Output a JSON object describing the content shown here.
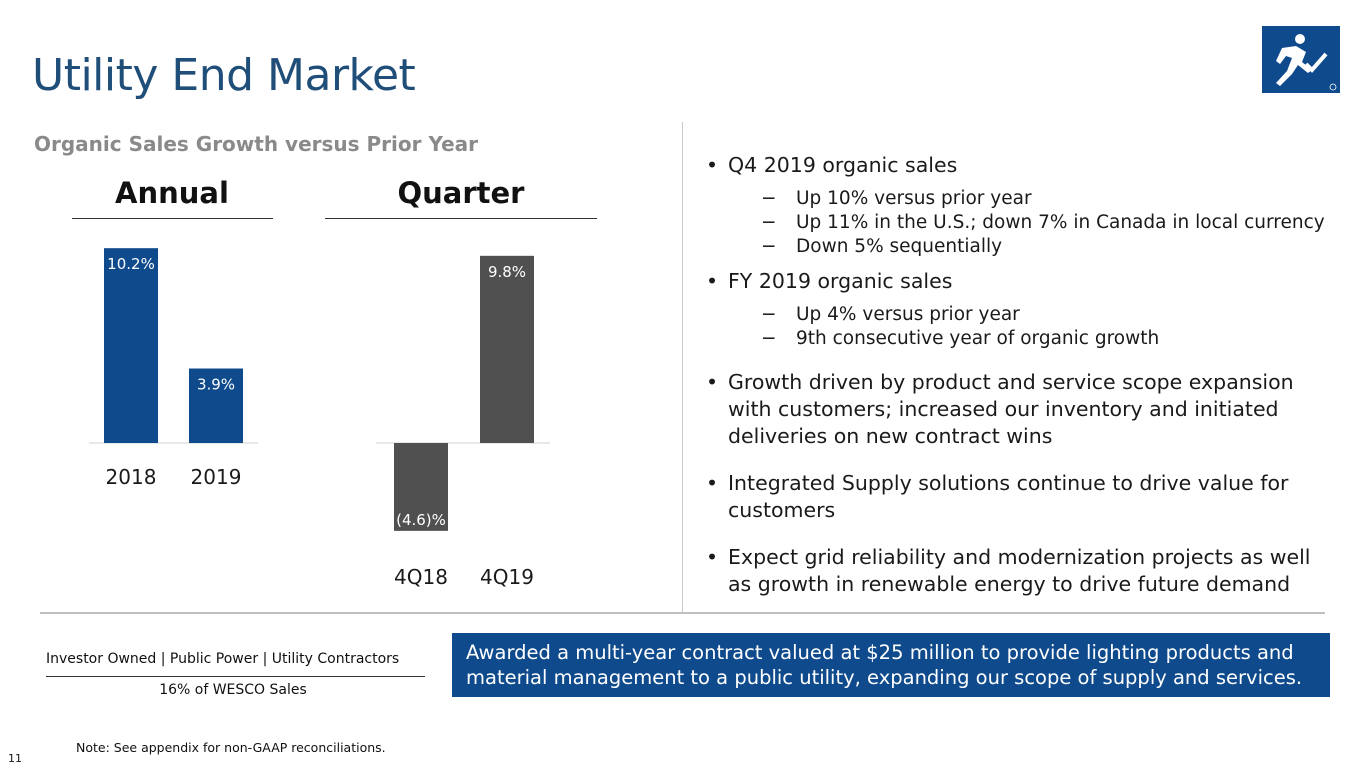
{
  "slide": {
    "title": "Utility End Market",
    "subtitle": "Organic Sales Growth versus Prior Year",
    "annual_header": "Annual",
    "quarter_header": "Quarter"
  },
  "chart_data": [
    {
      "type": "bar",
      "title": "Annual",
      "categories": [
        "2018",
        "2019"
      ],
      "values": [
        10.2,
        3.9
      ],
      "labels": [
        "10.2%",
        "3.9%"
      ],
      "ylim": [
        -5,
        10.2
      ],
      "color": "#0e4a8c",
      "grid": false
    },
    {
      "type": "bar",
      "title": "Quarter",
      "categories": [
        "4Q18",
        "4Q19"
      ],
      "values": [
        -4.6,
        9.8
      ],
      "labels": [
        "(4.6)%",
        "9.8%"
      ],
      "ylim": [
        -5,
        10.2
      ],
      "color": "#505050",
      "grid": false
    }
  ],
  "bullets": [
    {
      "text": "Q4 2019 organic sales",
      "sub": [
        "Up 10% versus prior year",
        "Up 11% in the U.S.; down 7% in Canada in local currency",
        "Down 5% sequentially"
      ]
    },
    {
      "text": "FY 2019 organic sales",
      "sub": [
        "Up 4% versus prior year",
        "9th consecutive year of organic growth"
      ]
    },
    {
      "text": "Growth driven by product and service scope expansion with customers; increased our inventory and initiated deliveries on new contract wins",
      "sub": []
    },
    {
      "text": "Integrated Supply solutions continue to drive value for customers",
      "sub": []
    },
    {
      "text": "Expect grid reliability and modernization projects as well as growth in renewable energy to drive future demand",
      "sub": []
    }
  ],
  "segments": {
    "line": "Investor Owned | Public Power  |  Utility Contractors",
    "share": "16% of WESCO Sales"
  },
  "callout": "Awarded a multi-year contract valued at $25 million to provide lighting products and material management to a public utility, expanding our scope of supply and services.",
  "footer": {
    "note": "Note: See appendix for non-GAAP reconciliations.",
    "page": "11"
  },
  "icons": {
    "logo": "runner-check-logo-icon"
  }
}
